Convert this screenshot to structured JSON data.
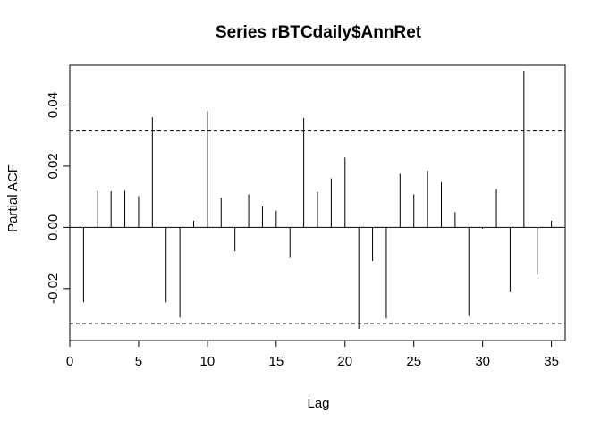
{
  "chart_data": {
    "type": "bar",
    "title": "Series  rBTCdaily$AnnRet",
    "xlabel": "Lag",
    "ylabel": "Partial ACF",
    "xlim": [
      0,
      36
    ],
    "ylim": [
      -0.037,
      0.053
    ],
    "x_ticks": [
      0,
      5,
      10,
      15,
      20,
      25,
      30,
      35
    ],
    "x_tick_labels": [
      "0",
      "5",
      "10",
      "15",
      "20",
      "25",
      "30",
      "35"
    ],
    "y_ticks": [
      -0.02,
      0.0,
      0.02,
      0.04
    ],
    "y_tick_labels": [
      "-0.02",
      "0.00",
      "0.02",
      "0.04"
    ],
    "confidence_band": [
      -0.0315,
      0.0315
    ],
    "grid": false,
    "lags": [
      1,
      2,
      3,
      4,
      5,
      6,
      7,
      8,
      9,
      10,
      11,
      12,
      13,
      14,
      15,
      16,
      17,
      18,
      19,
      20,
      21,
      22,
      23,
      24,
      25,
      26,
      27,
      28,
      29,
      30,
      31,
      32,
      33,
      34,
      35
    ],
    "values": [
      -0.0245,
      0.012,
      0.0118,
      0.012,
      0.0102,
      0.036,
      -0.0245,
      -0.0295,
      0.0022,
      0.038,
      0.0097,
      -0.0078,
      0.0108,
      0.0068,
      0.0055,
      -0.01,
      0.0358,
      0.0115,
      0.016,
      0.0228,
      -0.0332,
      -0.011,
      -0.0298,
      0.0175,
      0.0108,
      0.0185,
      0.0148,
      0.005,
      -0.029,
      -0.0005,
      0.0125,
      -0.0212,
      0.051,
      -0.0155,
      0.0022
    ]
  }
}
